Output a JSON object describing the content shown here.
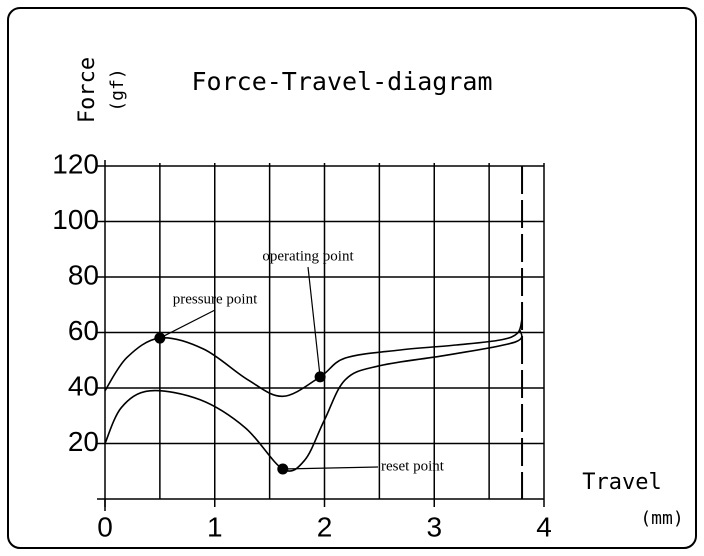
{
  "chart_data": {
    "type": "line",
    "title": "Force-Travel-diagram",
    "y_label": "Force",
    "y_unit": "(gf)",
    "x_label": "Travel",
    "x_unit": "(mm)",
    "xlim": [
      0,
      4
    ],
    "ylim": [
      0,
      120
    ],
    "xticks": [
      0,
      1,
      2,
      3,
      4
    ],
    "yticks": [
      20,
      40,
      60,
      80,
      100,
      120
    ],
    "xgrid": [
      0.5,
      1,
      1.5,
      2,
      2.5,
      3,
      3.5,
      4
    ],
    "grid": true,
    "end_travel": 3.8,
    "series": [
      {
        "color": "#000000",
        "x": [
          0,
          0.2,
          0.5,
          0.9,
          1.3,
          1.62,
          1.96,
          2.19,
          2.69,
          3.2,
          3.6,
          3.76,
          3.8
        ],
        "values": [
          39,
          51,
          58,
          54,
          43,
          37,
          44,
          50.8,
          53.7,
          55.5,
          57.3,
          59.8,
          65
        ]
      },
      {
        "color": "#000000",
        "x": [
          0,
          0.15,
          0.41,
          0.87,
          1.28,
          1.62,
          1.82,
          2.0,
          2.19,
          2.5,
          3.14,
          3.74,
          3.78
        ],
        "values": [
          20,
          33,
          39,
          35.7,
          25.6,
          10.8,
          14,
          28.5,
          43,
          48,
          52,
          56.6,
          61
        ]
      }
    ],
    "annotations": [
      {
        "label": "pressure point",
        "x": 0.5,
        "y": 58
      },
      {
        "label": "operating point",
        "x": 1.96,
        "y": 44
      },
      {
        "label": "reset point",
        "x": 1.62,
        "y": 10.8
      }
    ]
  }
}
